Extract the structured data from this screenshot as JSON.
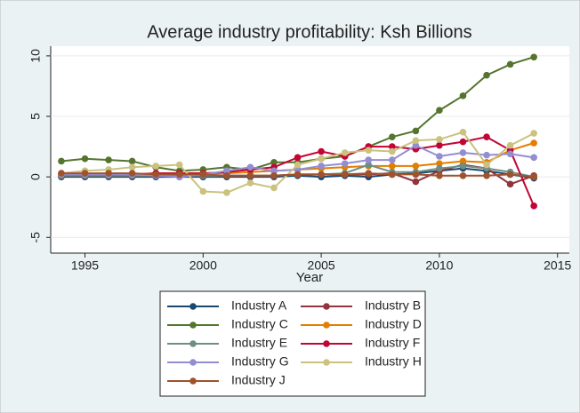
{
  "chart_data": {
    "type": "line",
    "title": "Average industry profitability: Ksh Billions",
    "x_label": "Year",
    "x": [
      1994,
      1995,
      1996,
      1997,
      1998,
      1999,
      2000,
      2001,
      2002,
      2003,
      2004,
      2005,
      2006,
      2007,
      2008,
      2009,
      2010,
      2011,
      2012,
      2013,
      2014
    ],
    "xlim": [
      1993.55,
      2015.5
    ],
    "xticks": [
      1995,
      2000,
      2005,
      2010,
      2015
    ],
    "ylim": [
      -6.3,
      10.8
    ],
    "yticks": [
      10,
      5,
      0,
      -5
    ],
    "grid": true,
    "series": [
      {
        "name": "Industry A",
        "color": "#1a476f",
        "values": [
          0.0,
          0.0,
          0.0,
          0.0,
          0.0,
          0.0,
          0.0,
          0.0,
          0.0,
          0.0,
          0.1,
          0.0,
          0.1,
          0.0,
          0.2,
          0.3,
          0.5,
          0.7,
          0.5,
          0.2,
          -0.1
        ]
      },
      {
        "name": "Industry B",
        "color": "#90353b",
        "values": [
          0.1,
          0.1,
          0.1,
          0.1,
          0.1,
          0.1,
          0.1,
          0.1,
          0.1,
          0.1,
          0.2,
          0.2,
          0.2,
          0.2,
          0.3,
          -0.4,
          0.5,
          1.0,
          0.7,
          -0.6,
          0.1
        ]
      },
      {
        "name": "Industry C",
        "color": "#55752f",
        "values": [
          1.3,
          1.5,
          1.4,
          1.3,
          0.8,
          0.5,
          0.6,
          0.8,
          0.6,
          1.2,
          1.2,
          1.5,
          1.7,
          2.5,
          3.3,
          3.8,
          5.5,
          6.7,
          8.4,
          9.3,
          9.9
        ]
      },
      {
        "name": "Industry D",
        "color": "#e37e00",
        "values": [
          0.2,
          0.2,
          0.2,
          0.2,
          0.3,
          0.3,
          0.3,
          0.3,
          0.4,
          0.5,
          0.6,
          0.7,
          0.8,
          0.9,
          0.9,
          0.9,
          1.1,
          1.3,
          1.2,
          2.2,
          2.8
        ]
      },
      {
        "name": "Industry E",
        "color": "#6e8e84",
        "values": [
          0.1,
          0.1,
          0.1,
          0.1,
          0.1,
          0.1,
          0.1,
          0.1,
          0.1,
          0.1,
          0.2,
          0.2,
          0.3,
          1.0,
          0.4,
          0.4,
          0.7,
          0.9,
          0.7,
          0.4,
          0.0
        ]
      },
      {
        "name": "Industry F",
        "color": "#c10534",
        "values": [
          0.2,
          0.2,
          0.2,
          0.2,
          0.3,
          0.3,
          0.3,
          0.4,
          0.6,
          0.8,
          1.6,
          2.1,
          1.7,
          2.5,
          2.5,
          2.3,
          2.6,
          2.9,
          3.3,
          2.2,
          -2.4
        ]
      },
      {
        "name": "Industry G",
        "color": "#938dd2",
        "values": [
          0.2,
          0.2,
          0.2,
          0.2,
          0.1,
          0.0,
          0.2,
          0.5,
          0.8,
          0.5,
          0.6,
          0.9,
          1.1,
          1.4,
          1.4,
          2.6,
          1.7,
          2.0,
          1.8,
          1.9,
          1.6
        ]
      },
      {
        "name": "Industry H",
        "color": "#cac27e",
        "values": [
          0.3,
          0.5,
          0.6,
          0.8,
          0.9,
          1.0,
          -1.2,
          -1.3,
          -0.5,
          -0.9,
          1.0,
          1.5,
          2.0,
          2.2,
          2.1,
          3.0,
          3.1,
          3.7,
          1.0,
          2.6,
          3.6
        ]
      },
      {
        "name": "Industry J",
        "color": "#a0522d",
        "values": [
          0.3,
          0.3,
          0.3,
          0.3,
          0.2,
          0.2,
          0.2,
          0.1,
          0.1,
          0.1,
          0.2,
          0.2,
          0.2,
          0.3,
          0.2,
          0.2,
          0.1,
          0.1,
          0.1,
          0.2,
          0.0
        ]
      }
    ]
  }
}
